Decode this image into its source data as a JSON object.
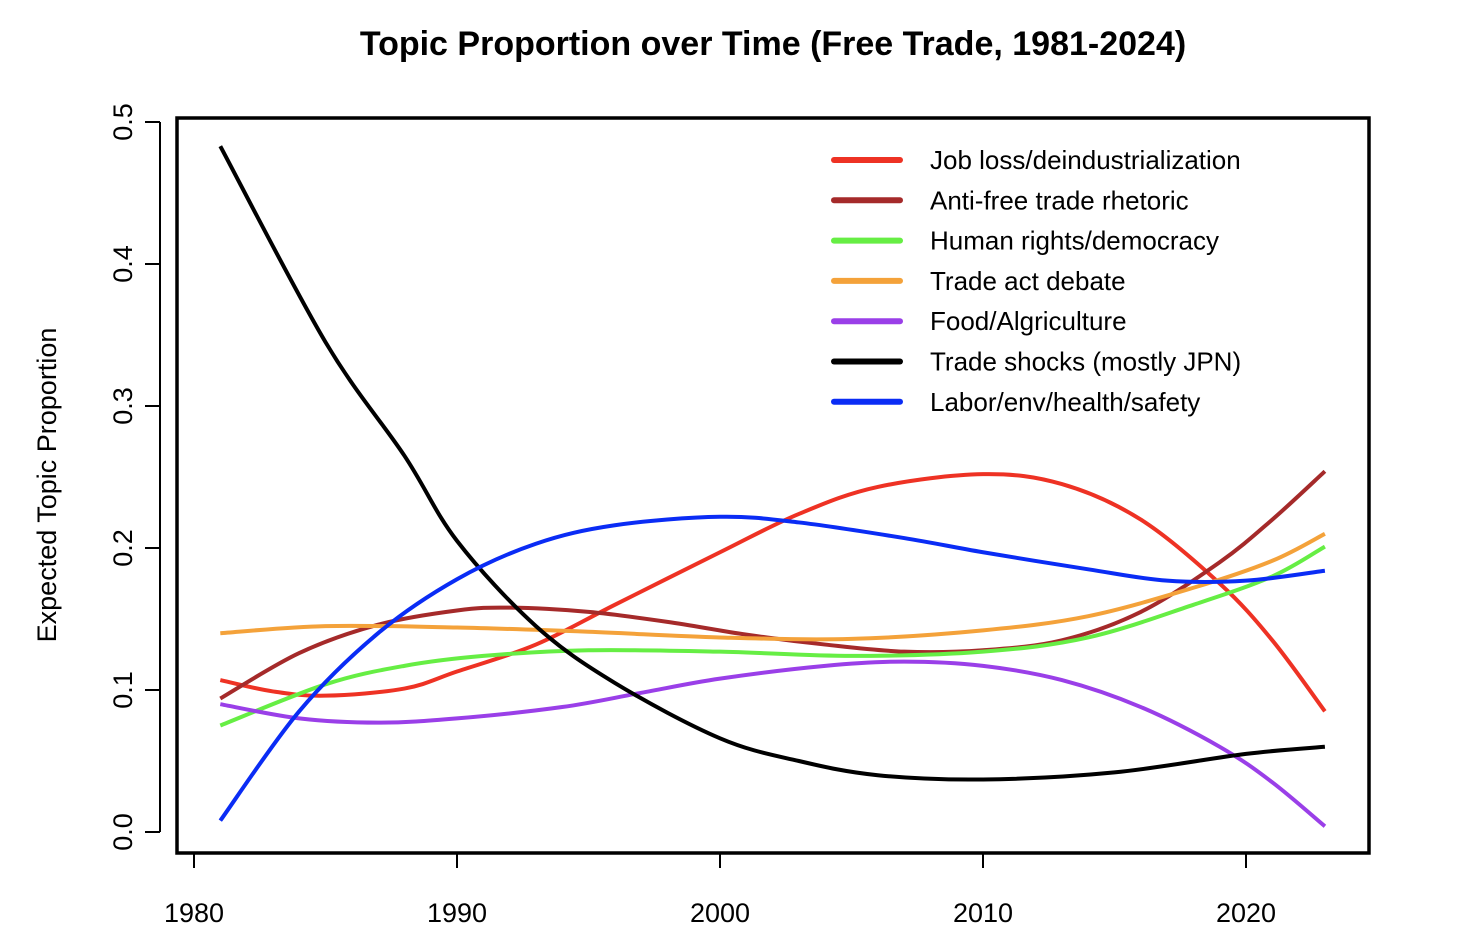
{
  "chart_data": {
    "type": "line",
    "title": "Topic Proportion over Time (Free Trade, 1981-2024)",
    "xlabel": "",
    "ylabel": "Expected Topic Proportion",
    "xlim": [
      1980,
      2023
    ],
    "ylim": [
      0,
      0.5
    ],
    "xticks": [
      "1980",
      "1990",
      "2000",
      "2010",
      "2020"
    ],
    "yticks": [
      "0.0",
      "0.1",
      "0.2",
      "0.3",
      "0.4",
      "0.5"
    ],
    "grid": false,
    "legend_position": "top-right",
    "series": [
      {
        "name": "Job loss/deindustrialization",
        "color": "#EE3224",
        "x": [
          1981,
          1983,
          1985,
          1988,
          1990,
          1993,
          1996,
          2000,
          2003,
          2006,
          2010,
          2013,
          2016,
          2019,
          2021,
          2023
        ],
        "y": [
          0.107,
          0.099,
          0.096,
          0.101,
          0.113,
          0.132,
          0.16,
          0.197,
          0.224,
          0.243,
          0.252,
          0.245,
          0.22,
          0.175,
          0.135,
          0.085
        ]
      },
      {
        "name": "Anti-free trade rhetoric",
        "color": "#A52A2A",
        "x": [
          1981,
          1984,
          1987,
          1990,
          1992,
          1995,
          1998,
          2001,
          2004,
          2007,
          2010,
          2013,
          2016,
          2019,
          2021,
          2023
        ],
        "y": [
          0.094,
          0.126,
          0.146,
          0.156,
          0.158,
          0.155,
          0.148,
          0.139,
          0.132,
          0.127,
          0.128,
          0.135,
          0.155,
          0.19,
          0.22,
          0.254
        ]
      },
      {
        "name": "Human rights/democracy",
        "color": "#66EE44",
        "x": [
          1981,
          1985,
          1988,
          1991,
          1995,
          2000,
          2005,
          2010,
          2014,
          2018,
          2021,
          2023
        ],
        "y": [
          0.075,
          0.104,
          0.117,
          0.124,
          0.128,
          0.127,
          0.124,
          0.127,
          0.137,
          0.16,
          0.18,
          0.201
        ]
      },
      {
        "name": "Trade act debate",
        "color": "#F4A23A",
        "x": [
          1981,
          1985,
          1990,
          1995,
          2000,
          2005,
          2010,
          2014,
          2018,
          2021,
          2023
        ],
        "y": [
          0.14,
          0.145,
          0.144,
          0.141,
          0.137,
          0.136,
          0.142,
          0.152,
          0.172,
          0.191,
          0.21
        ]
      },
      {
        "name": "Food/Algriculture",
        "color": "#9A3FE8",
        "x": [
          1981,
          1984,
          1987,
          1990,
          1994,
          1997,
          2000,
          2004,
          2007,
          2010,
          2013,
          2016,
          2019,
          2021,
          2023
        ],
        "y": [
          0.09,
          0.08,
          0.077,
          0.08,
          0.088,
          0.098,
          0.108,
          0.117,
          0.12,
          0.117,
          0.107,
          0.088,
          0.06,
          0.035,
          0.004
        ]
      },
      {
        "name": "Trade shocks (mostly JPN)",
        "color": "#000000",
        "x": [
          1981,
          1985,
          1988,
          1990,
          1993,
          1996,
          2000,
          2003,
          2006,
          2010,
          2015,
          2020,
          2023
        ],
        "y": [
          0.483,
          0.345,
          0.265,
          0.205,
          0.145,
          0.105,
          0.066,
          0.05,
          0.04,
          0.037,
          0.042,
          0.055,
          0.06
        ]
      },
      {
        "name": "Labor/env/health/safety",
        "color": "#0A2CF5",
        "x": [
          1981,
          1984,
          1987,
          1990,
          1993,
          1996,
          2000,
          2003,
          2007,
          2010,
          2014,
          2017,
          2020,
          2023
        ],
        "y": [
          0.008,
          0.085,
          0.14,
          0.178,
          0.203,
          0.216,
          0.222,
          0.218,
          0.207,
          0.197,
          0.185,
          0.177,
          0.177,
          0.184
        ]
      }
    ]
  }
}
